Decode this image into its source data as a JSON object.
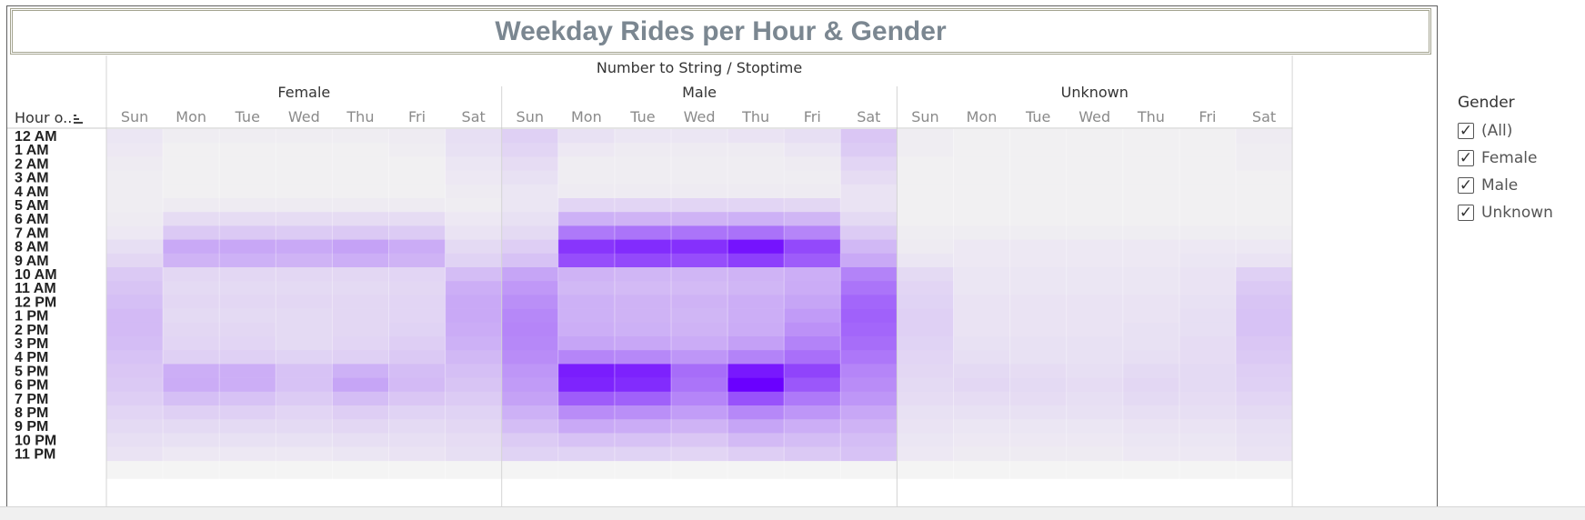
{
  "title": "Weekday Rides per Hour & Gender",
  "legend": {
    "title": "Gender",
    "items": [
      {
        "label": "(All)",
        "checked": true
      },
      {
        "label": "Female",
        "checked": true
      },
      {
        "label": "Male",
        "checked": true
      },
      {
        "label": "Unknown",
        "checked": true
      }
    ]
  },
  "chart_data": {
    "type": "heatmap",
    "title": "Weekday Rides per Hour & Gender",
    "column_header": "Number to String / Stoptime",
    "row_header": "Hour o..",
    "row_header_icon": "sort-icon",
    "color_low": "#f2f2f2",
    "color_high": "#6a00ff",
    "value_scale": "relative intensity 0-100",
    "groups": [
      "Female",
      "Male",
      "Unknown"
    ],
    "days": [
      "Sun",
      "Mon",
      "Tue",
      "Wed",
      "Thu",
      "Fri",
      "Sat"
    ],
    "hours": [
      "12 AM",
      "1 AM",
      "2 AM",
      "3 AM",
      "4 AM",
      "5 AM",
      "6 AM",
      "7 AM",
      "8 AM",
      "9 AM",
      "10 AM",
      "11 AM",
      "12 PM",
      "1 PM",
      "2 PM",
      "3 PM",
      "4 PM",
      "5 PM",
      "6 PM",
      "7 PM",
      "8 PM",
      "9 PM",
      "10 PM",
      "11 PM"
    ],
    "series": [
      {
        "name": "Female",
        "values": [
          [
            5,
            2,
            2,
            2,
            2,
            3,
            8
          ],
          [
            4,
            1,
            1,
            1,
            1,
            2,
            7
          ],
          [
            3,
            1,
            1,
            1,
            1,
            1,
            5
          ],
          [
            2,
            1,
            1,
            1,
            1,
            1,
            4
          ],
          [
            2,
            1,
            1,
            1,
            1,
            1,
            3
          ],
          [
            2,
            3,
            3,
            3,
            3,
            3,
            2
          ],
          [
            3,
            9,
            9,
            9,
            9,
            9,
            4
          ],
          [
            4,
            17,
            17,
            16,
            17,
            16,
            6
          ],
          [
            8,
            30,
            31,
            30,
            33,
            29,
            10
          ],
          [
            11,
            26,
            27,
            26,
            28,
            26,
            13
          ],
          [
            17,
            11,
            11,
            11,
            11,
            12,
            22
          ],
          [
            19,
            10,
            10,
            10,
            10,
            11,
            28
          ],
          [
            21,
            11,
            11,
            11,
            11,
            12,
            30
          ],
          [
            23,
            10,
            10,
            10,
            11,
            12,
            30
          ],
          [
            23,
            11,
            11,
            10,
            11,
            13,
            29
          ],
          [
            22,
            12,
            12,
            10,
            12,
            15,
            27
          ],
          [
            20,
            14,
            14,
            13,
            14,
            17,
            24
          ],
          [
            18,
            28,
            28,
            20,
            27,
            22,
            21
          ],
          [
            17,
            29,
            28,
            20,
            32,
            23,
            19
          ],
          [
            15,
            21,
            20,
            16,
            22,
            18,
            16
          ],
          [
            12,
            14,
            14,
            12,
            15,
            13,
            13
          ],
          [
            10,
            10,
            10,
            10,
            11,
            10,
            11
          ],
          [
            8,
            7,
            7,
            7,
            8,
            8,
            9
          ],
          [
            6,
            4,
            4,
            4,
            5,
            6,
            8
          ]
        ]
      },
      {
        "name": "Male",
        "values": [
          [
            14,
            7,
            5,
            5,
            6,
            8,
            18
          ],
          [
            12,
            4,
            3,
            3,
            3,
            5,
            16
          ],
          [
            9,
            2,
            2,
            2,
            2,
            3,
            12
          ],
          [
            7,
            2,
            2,
            2,
            2,
            2,
            9
          ],
          [
            5,
            3,
            3,
            3,
            3,
            3,
            6
          ],
          [
            5,
            12,
            12,
            12,
            12,
            11,
            6
          ],
          [
            7,
            27,
            26,
            26,
            27,
            25,
            10
          ],
          [
            10,
            50,
            52,
            52,
            53,
            45,
            16
          ],
          [
            15,
            78,
            82,
            80,
            92,
            70,
            24
          ],
          [
            20,
            68,
            70,
            68,
            74,
            62,
            30
          ],
          [
            32,
            26,
            25,
            25,
            26,
            28,
            46
          ],
          [
            37,
            24,
            23,
            23,
            25,
            29,
            52
          ],
          [
            41,
            27,
            26,
            26,
            28,
            32,
            58
          ],
          [
            44,
            27,
            26,
            25,
            28,
            36,
            60
          ],
          [
            45,
            28,
            27,
            26,
            29,
            40,
            58
          ],
          [
            44,
            32,
            31,
            29,
            34,
            46,
            55
          ],
          [
            42,
            45,
            44,
            38,
            46,
            54,
            51
          ],
          [
            38,
            88,
            86,
            55,
            90,
            72,
            45
          ],
          [
            36,
            85,
            82,
            52,
            100,
            64,
            42
          ],
          [
            33,
            62,
            60,
            45,
            66,
            50,
            38
          ],
          [
            27,
            42,
            41,
            35,
            44,
            38,
            31
          ],
          [
            22,
            30,
            29,
            26,
            32,
            28,
            26
          ],
          [
            16,
            20,
            20,
            18,
            23,
            22,
            22
          ],
          [
            13,
            13,
            13,
            12,
            15,
            17,
            20
          ]
        ]
      },
      {
        "name": "Unknown",
        "values": [
          [
            2,
            1,
            1,
            1,
            1,
            1,
            3
          ],
          [
            2,
            1,
            1,
            1,
            1,
            1,
            2
          ],
          [
            1,
            1,
            1,
            1,
            1,
            1,
            2
          ],
          [
            1,
            1,
            1,
            1,
            1,
            1,
            1
          ],
          [
            1,
            1,
            1,
            1,
            1,
            1,
            1
          ],
          [
            1,
            1,
            1,
            1,
            1,
            1,
            1
          ],
          [
            1,
            1,
            1,
            1,
            1,
            1,
            1
          ],
          [
            2,
            2,
            2,
            2,
            2,
            2,
            2
          ],
          [
            3,
            4,
            4,
            4,
            4,
            4,
            4
          ],
          [
            5,
            4,
            4,
            4,
            4,
            5,
            6
          ],
          [
            10,
            5,
            5,
            5,
            5,
            6,
            14
          ],
          [
            12,
            5,
            5,
            5,
            5,
            6,
            17
          ],
          [
            13,
            6,
            6,
            6,
            6,
            7,
            19
          ],
          [
            14,
            6,
            6,
            6,
            6,
            8,
            20
          ],
          [
            14,
            6,
            6,
            6,
            7,
            8,
            20
          ],
          [
            13,
            7,
            7,
            7,
            7,
            9,
            18
          ],
          [
            12,
            8,
            7,
            7,
            8,
            9,
            17
          ],
          [
            11,
            10,
            9,
            8,
            10,
            10,
            15
          ],
          [
            10,
            11,
            10,
            9,
            11,
            10,
            14
          ],
          [
            9,
            9,
            9,
            8,
            10,
            9,
            12
          ],
          [
            7,
            7,
            7,
            7,
            8,
            8,
            10
          ],
          [
            6,
            5,
            5,
            5,
            6,
            6,
            8
          ],
          [
            5,
            4,
            4,
            4,
            5,
            5,
            7
          ],
          [
            4,
            3,
            3,
            3,
            4,
            4,
            6
          ]
        ]
      }
    ]
  }
}
